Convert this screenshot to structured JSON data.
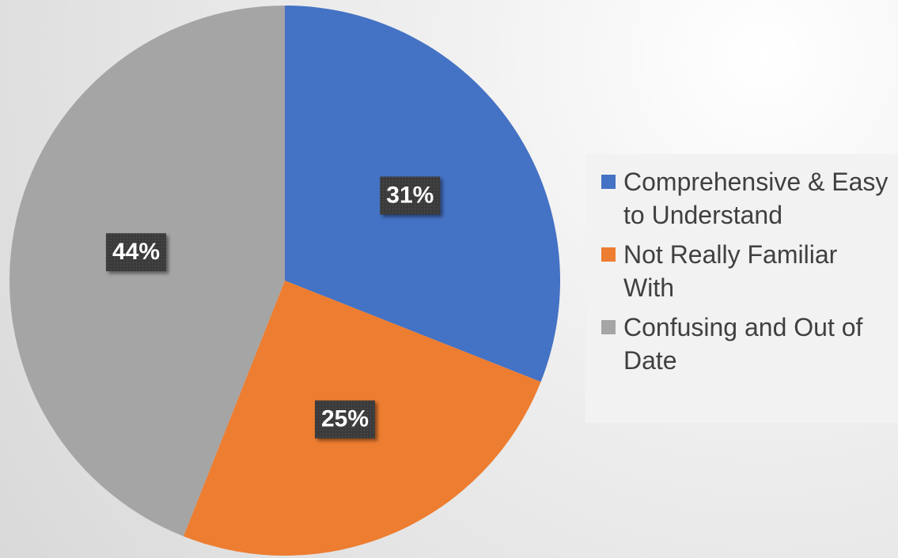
{
  "chart_data": {
    "type": "pie",
    "categories": [
      "Comprehensive & Easy to Understand",
      "Not Really Familiar With",
      "Confusing and Out of Date"
    ],
    "values": [
      31,
      25,
      44
    ],
    "value_labels": [
      "31%",
      "25%",
      "44%"
    ],
    "colors": [
      "#4472c4",
      "#ed7d31",
      "#a5a5a5"
    ],
    "legend": "right"
  }
}
